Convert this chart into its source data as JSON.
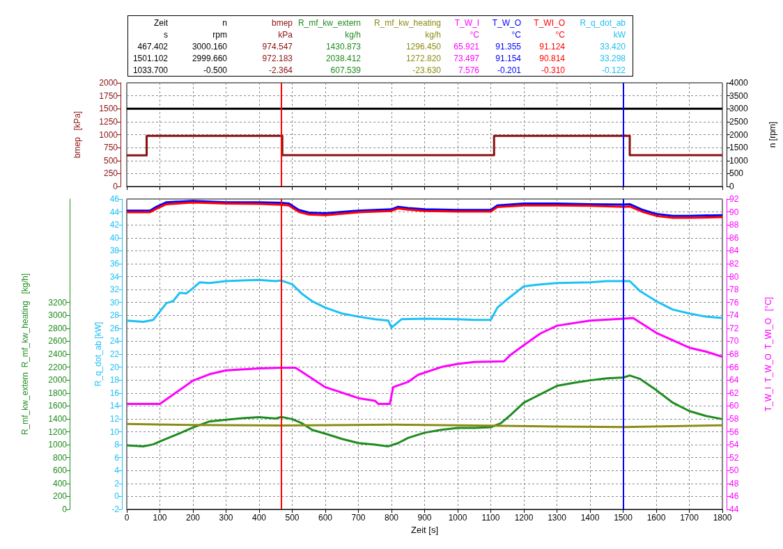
{
  "chart_data": [
    {
      "type": "step",
      "ylabel": "bmep   [kPa]",
      "y2label": "n [rpm]",
      "xlim": [
        0,
        1800
      ],
      "xticks": [
        0,
        100,
        200,
        300,
        400,
        500,
        600,
        700,
        800,
        900,
        1000,
        1100,
        1200,
        1300,
        1400,
        1500,
        1600,
        1700,
        1800
      ],
      "ylim": [
        0,
        2000
      ],
      "yticks": [
        0,
        250,
        500,
        750,
        1000,
        1250,
        1500,
        1750,
        2000
      ],
      "y2lim": [
        0,
        4000
      ],
      "y2ticks": [
        0,
        500,
        1000,
        1500,
        2000,
        2500,
        3000,
        3500,
        4000
      ],
      "grid": true,
      "tick_labels": "y",
      "ref_lines": [
        {
          "axis": "x",
          "value": 467.402,
          "color": "#ff0000"
        },
        {
          "axis": "x",
          "value": 1501.102,
          "color": "#0000ff"
        }
      ],
      "annotations": [
        "Zeit",
        "s",
        "rpm",
        "kPa",
        "kg/h",
        "kg/h",
        "°C",
        "°C",
        "°C",
        "kW",
        "467.402",
        "3000.160",
        "974.547",
        "1430.873",
        "1296.450",
        "65.921",
        "91.355",
        "91.124",
        "33.420",
        "1501.102",
        "2999.660",
        "972.183",
        "2038.412",
        "1272.820",
        "73.497",
        "91.154",
        "90.814",
        "33.298",
        "1033.700",
        "-0.500",
        "-2.364",
        "607.539",
        "-23.630",
        "7.576",
        "-0.201",
        "-0.310",
        "-0.122"
      ],
      "series": [
        {
          "name": "bmep",
          "color": "#8b1010",
          "x": [
            0,
            60,
            470,
            1110,
            1520,
            1800
          ],
          "values": [
            600,
            975,
            605,
            975,
            605,
            605
          ]
        },
        {
          "name": "n",
          "color": "#000000",
          "axis": "y2",
          "x": [
            0,
            1800
          ],
          "values": [
            3000,
            3000
          ]
        }
      ]
    },
    {
      "type": "line",
      "xlabel": "Zeit [s]",
      "ylabel": "R_mf_kw_extern  R_mf_kw_heating   [kg/h]",
      "y2label": "R_q_dot_ab [kW]",
      "y3label": "T_W_I  T_W_O  T_WI_O   [°C]",
      "xlim": [
        0,
        1800
      ],
      "xticks": [
        0,
        100,
        200,
        300,
        400,
        500,
        600,
        700,
        800,
        900,
        1000,
        1100,
        1200,
        1300,
        1400,
        1500,
        1600,
        1700,
        1800
      ],
      "ylim": [
        0,
        4800
      ],
      "yticks": [
        0,
        200,
        400,
        600,
        800,
        1000,
        1200,
        1400,
        1600,
        1800,
        2000,
        2200,
        2400,
        2600,
        2800,
        3000,
        3200
      ],
      "y2lim": [
        -2,
        46
      ],
      "y2ticks": [
        -2,
        0,
        2,
        4,
        6,
        8,
        10,
        12,
        14,
        16,
        18,
        20,
        22,
        24,
        26,
        28,
        30,
        32,
        34,
        36,
        38,
        40,
        42,
        44,
        46
      ],
      "y3lim": [
        44,
        92
      ],
      "y3ticks": [
        44,
        46,
        48,
        50,
        52,
        54,
        56,
        58,
        60,
        62,
        64,
        66,
        68,
        70,
        72,
        74,
        76,
        78,
        80,
        82,
        84,
        86,
        88,
        90,
        92
      ],
      "grid": true,
      "ref_lines": [
        {
          "axis": "x",
          "value": 467.402,
          "color": "#ff0000"
        },
        {
          "axis": "x",
          "value": 1501.102,
          "color": "#0000ff"
        }
      ],
      "series": [
        {
          "name": "R_mf_kw_extern",
          "color": "#1e8c1e",
          "x": [
            0,
            50,
            80,
            100,
            150,
            200,
            250,
            300,
            350,
            400,
            450,
            467,
            500,
            530,
            560,
            600,
            650,
            700,
            750,
            790,
            820,
            850,
            900,
            950,
            1000,
            1050,
            1100,
            1130,
            1160,
            1200,
            1250,
            1300,
            1350,
            1400,
            1450,
            1501,
            1520,
            1550,
            1600,
            1650,
            1700,
            1750,
            1800
          ],
          "values": [
            990,
            975,
            1005,
            1050,
            1155,
            1265,
            1360,
            1385,
            1410,
            1425,
            1405,
            1430,
            1395,
            1330,
            1230,
            1170,
            1090,
            1025,
            1000,
            975,
            1025,
            1105,
            1185,
            1230,
            1260,
            1260,
            1270,
            1330,
            1460,
            1650,
            1780,
            1910,
            1955,
            1995,
            2025,
            2040,
            2070,
            2020,
            1845,
            1650,
            1520,
            1445,
            1395
          ]
        },
        {
          "name": "R_mf_kw_heating",
          "color": "#8c8c14",
          "x": [
            0,
            200,
            467,
            800,
            1100,
            1300,
            1501,
            1650,
            1800
          ],
          "values": [
            1320,
            1305,
            1296,
            1310,
            1295,
            1280,
            1273,
            1285,
            1300
          ]
        },
        {
          "name": "T_W_I",
          "color": "#ff00ff",
          "axis": "y3",
          "x": [
            0,
            100,
            150,
            200,
            250,
            300,
            400,
            467,
            510,
            600,
            700,
            750,
            760,
            795,
            805,
            850,
            880,
            950,
            1000,
            1050,
            1140,
            1160,
            1200,
            1250,
            1300,
            1400,
            1501,
            1530,
            1600,
            1700,
            1750,
            1800
          ],
          "values": [
            60.3,
            60.3,
            62.1,
            63.9,
            64.9,
            65.5,
            65.8,
            65.9,
            65.9,
            62.9,
            61.2,
            60.8,
            60.3,
            60.3,
            62.9,
            63.7,
            64.8,
            66.0,
            66.5,
            66.8,
            66.9,
            67.9,
            69.4,
            71.2,
            72.4,
            73.2,
            73.5,
            73.6,
            71.3,
            69.0,
            68.4,
            67.6
          ]
        },
        {
          "name": "T_W_O",
          "color": "#0000ff",
          "axis": "y3",
          "x": [
            0,
            70,
            90,
            120,
            200,
            300,
            400,
            467,
            490,
            520,
            550,
            600,
            700,
            800,
            820,
            850,
            900,
            1000,
            1100,
            1120,
            1200,
            1300,
            1400,
            1501,
            1520,
            1560,
            1600,
            1650,
            1700,
            1800
          ],
          "values": [
            90.2,
            90.2,
            90.8,
            91.5,
            91.7,
            91.5,
            91.5,
            91.4,
            91.3,
            90.3,
            89.9,
            89.8,
            90.2,
            90.4,
            90.8,
            90.6,
            90.4,
            90.3,
            90.3,
            91.0,
            91.3,
            91.3,
            91.2,
            91.15,
            91.2,
            90.3,
            89.7,
            89.4,
            89.4,
            89.5
          ]
        },
        {
          "name": "T_WI_O",
          "color": "#ff0000",
          "axis": "y3",
          "x": [
            0,
            70,
            90,
            120,
            200,
            300,
            400,
            467,
            490,
            520,
            550,
            600,
            700,
            800,
            820,
            850,
            900,
            1000,
            1100,
            1120,
            1200,
            1300,
            1400,
            1501,
            1520,
            1560,
            1600,
            1650,
            1700,
            1800
          ],
          "values": [
            89.95,
            89.95,
            90.5,
            91.2,
            91.45,
            91.3,
            91.25,
            91.1,
            91.0,
            90.0,
            89.6,
            89.5,
            89.95,
            90.15,
            90.55,
            90.35,
            90.15,
            90.05,
            90.05,
            90.75,
            91.0,
            91.0,
            90.95,
            90.8,
            90.85,
            90.0,
            89.4,
            89.1,
            89.1,
            89.2
          ]
        },
        {
          "name": "R_q_dot_ab",
          "color": "#1ec0f5",
          "axis": "y2",
          "x": [
            0,
            50,
            80,
            100,
            120,
            140,
            160,
            180,
            200,
            220,
            250,
            300,
            350,
            400,
            450,
            467,
            500,
            530,
            560,
            600,
            650,
            700,
            750,
            790,
            800,
            830,
            900,
            1000,
            1050,
            1100,
            1120,
            1150,
            1200,
            1250,
            1300,
            1400,
            1450,
            1501,
            1520,
            1550,
            1600,
            1650,
            1700,
            1750,
            1800
          ],
          "values": [
            27.2,
            27.0,
            27.3,
            28.6,
            29.9,
            30.2,
            31.5,
            31.4,
            32.2,
            33.1,
            33.0,
            33.3,
            33.4,
            33.5,
            33.3,
            33.4,
            32.8,
            31.3,
            30.2,
            29.2,
            28.3,
            27.8,
            27.4,
            27.2,
            26.1,
            27.4,
            27.5,
            27.4,
            27.3,
            27.3,
            29.2,
            30.5,
            32.5,
            32.8,
            33.0,
            33.1,
            33.3,
            33.3,
            33.3,
            31.8,
            30.2,
            28.9,
            28.3,
            27.8,
            27.6
          ]
        }
      ]
    }
  ]
}
